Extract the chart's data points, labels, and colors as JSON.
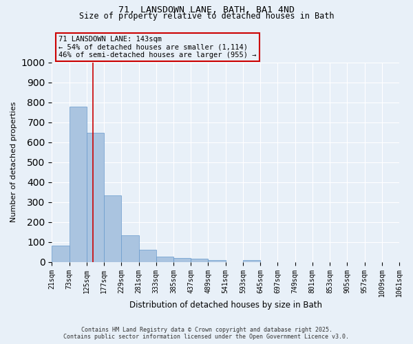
{
  "title1": "71, LANSDOWN LANE, BATH, BA1 4ND",
  "title2": "Size of property relative to detached houses in Bath",
  "xlabel": "Distribution of detached houses by size in Bath",
  "ylabel": "Number of detached properties",
  "bar_values": [
    83,
    780,
    648,
    335,
    132,
    62,
    25,
    18,
    15,
    8,
    0,
    10,
    0,
    0,
    0,
    0,
    0,
    0,
    0,
    0
  ],
  "bin_edges": [
    21,
    73,
    125,
    177,
    229,
    281,
    333,
    385,
    437,
    489,
    541,
    593,
    645,
    697,
    749,
    801,
    853,
    905,
    957,
    1009,
    1061
  ],
  "tick_labels": [
    "21sqm",
    "73sqm",
    "125sqm",
    "177sqm",
    "229sqm",
    "281sqm",
    "333sqm",
    "385sqm",
    "437sqm",
    "489sqm",
    "541sqm",
    "593sqm",
    "645sqm",
    "697sqm",
    "749sqm",
    "801sqm",
    "853sqm",
    "905sqm",
    "957sqm",
    "1009sqm",
    "1061sqm"
  ],
  "ylim": [
    0,
    1000
  ],
  "yticks": [
    0,
    100,
    200,
    300,
    400,
    500,
    600,
    700,
    800,
    900,
    1000
  ],
  "bar_color": "#aac4e0",
  "bar_edge_color": "#6699cc",
  "vline_x": 143,
  "vline_color": "#cc0000",
  "annotation_text": "71 LANSDOWN LANE: 143sqm\n← 54% of detached houses are smaller (1,114)\n46% of semi-detached houses are larger (955) →",
  "annotation_box_color": "#cc0000",
  "bg_color": "#e8f0f8",
  "footer1": "Contains HM Land Registry data © Crown copyright and database right 2025.",
  "footer2": "Contains public sector information licensed under the Open Government Licence v3.0."
}
